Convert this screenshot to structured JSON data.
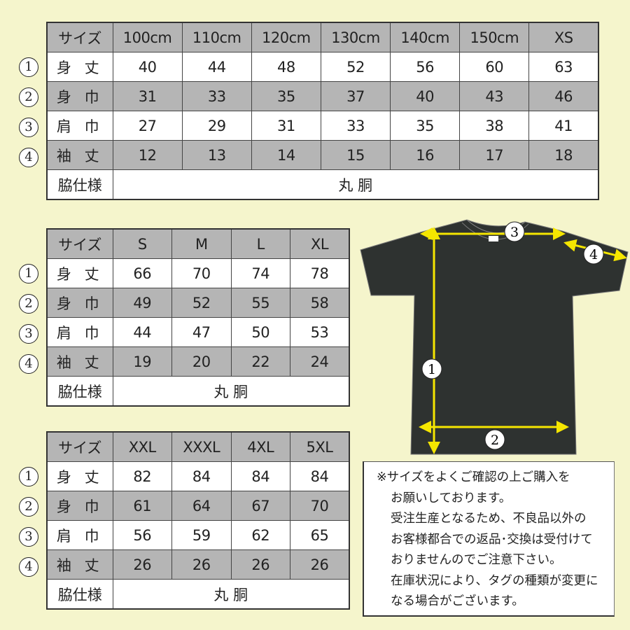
{
  "row_labels": [
    "サイズ",
    "身 丈",
    "身 巾",
    "肩 巾",
    "袖 丈",
    "脇仕様"
  ],
  "row_markers": [
    "1",
    "2",
    "3",
    "4"
  ],
  "tables": [
    {
      "sizes": [
        "100cm",
        "110cm",
        "120cm",
        "130cm",
        "140cm",
        "150cm",
        "XS"
      ],
      "rows": [
        [
          "40",
          "44",
          "48",
          "52",
          "56",
          "60",
          "63"
        ],
        [
          "31",
          "33",
          "35",
          "37",
          "40",
          "43",
          "46"
        ],
        [
          "27",
          "29",
          "31",
          "33",
          "35",
          "38",
          "41"
        ],
        [
          "12",
          "13",
          "14",
          "15",
          "16",
          "17",
          "18"
        ]
      ],
      "side": "丸 胴"
    },
    {
      "sizes": [
        "S",
        "M",
        "L",
        "XL"
      ],
      "rows": [
        [
          "66",
          "70",
          "74",
          "78"
        ],
        [
          "49",
          "52",
          "55",
          "58"
        ],
        [
          "44",
          "47",
          "50",
          "53"
        ],
        [
          "19",
          "20",
          "22",
          "24"
        ]
      ],
      "side": "丸 胴"
    },
    {
      "sizes": [
        "XXL",
        "XXXL",
        "4XL",
        "5XL"
      ],
      "rows": [
        [
          "82",
          "84",
          "84",
          "84"
        ],
        [
          "61",
          "64",
          "67",
          "70"
        ],
        [
          "56",
          "59",
          "62",
          "65"
        ],
        [
          "26",
          "26",
          "26",
          "26"
        ]
      ],
      "side": "丸 胴"
    }
  ],
  "diagram": {
    "markers": [
      "1",
      "2",
      "3",
      "4"
    ],
    "shirt_color": "#2e3230",
    "arrow_color": "#f5e600"
  },
  "note": {
    "lines": [
      "※サイズをよくご確認の上ご購入を",
      "お願いしております。",
      "受注生産となるため、不良品以外の",
      "お客様都合での返品･交換は受付けて",
      "おりませんのでご注意下さい。",
      "在庫状況により、タグの種類が変更に",
      "なる場合がございます。"
    ]
  },
  "colors": {
    "background": "#f5f5cc",
    "gray_row": "#b5b5b5"
  }
}
